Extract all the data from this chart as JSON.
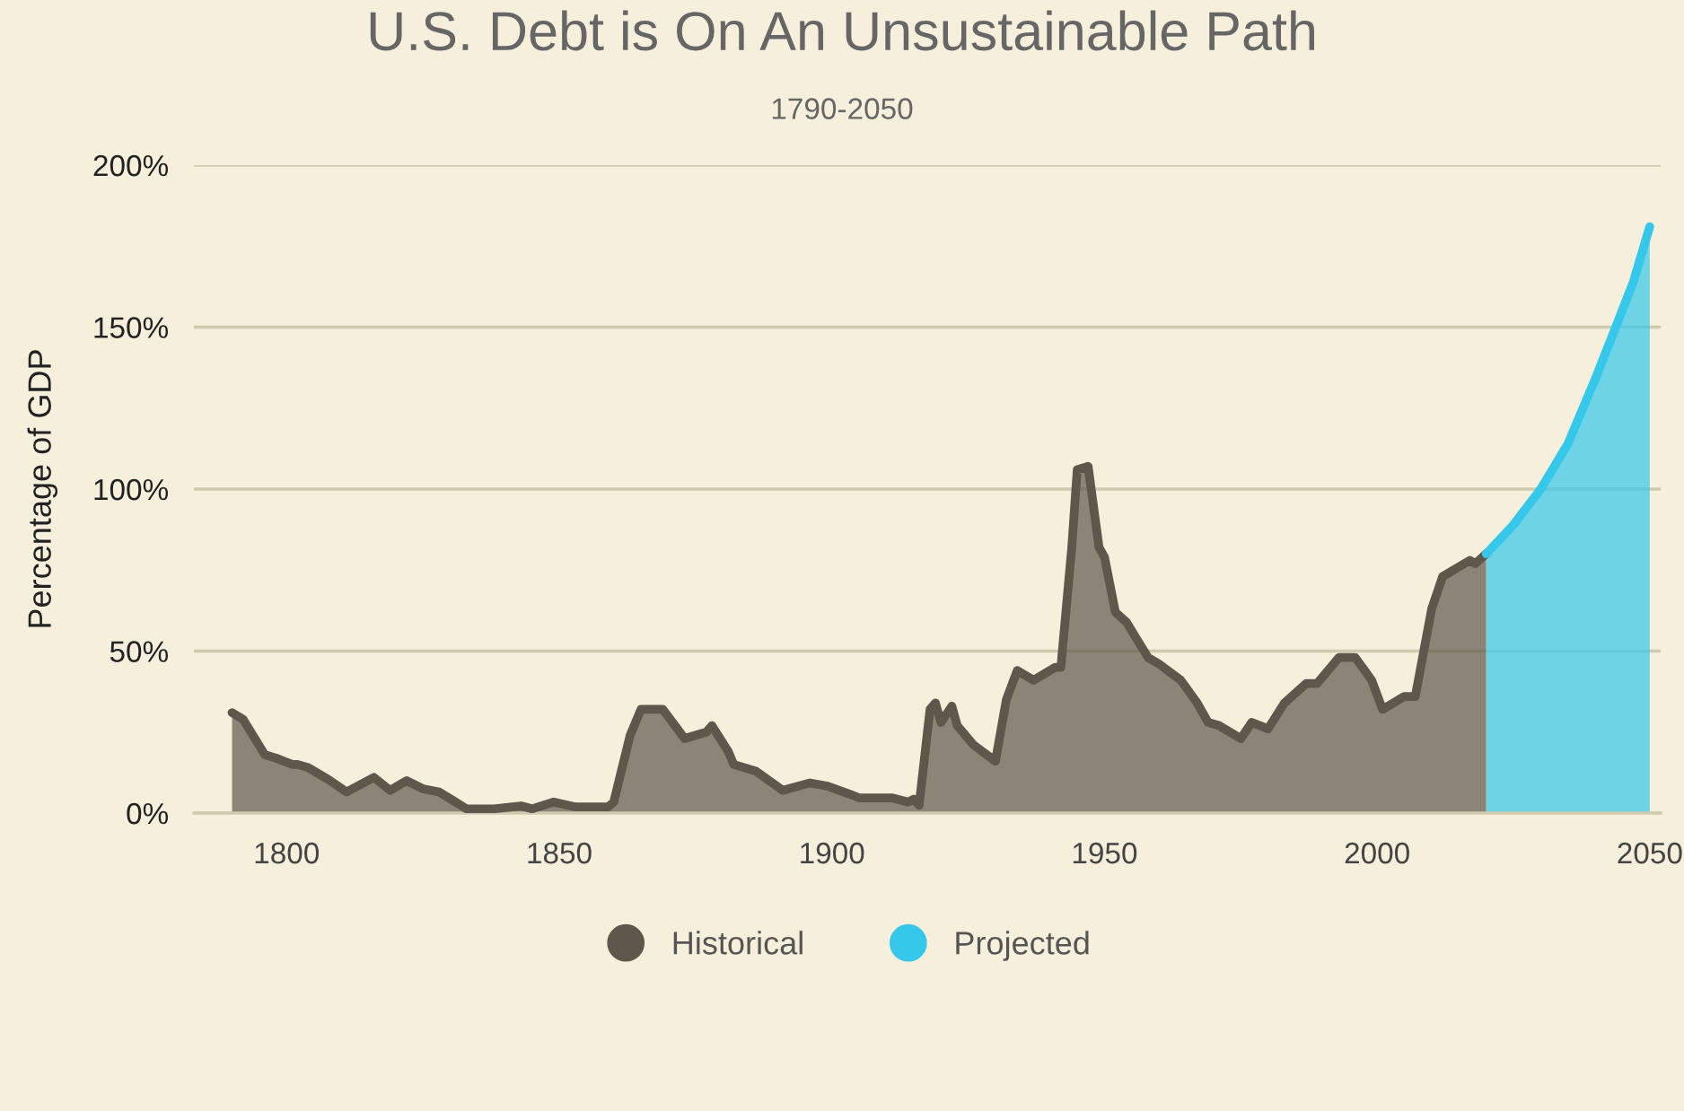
{
  "chart_data": {
    "type": "area",
    "title": "U.S. Debt is On An Unsustainable Path",
    "subtitle": "1790-2050",
    "ylabel": "Percentage of GDP",
    "xlim": [
      1783,
      2052
    ],
    "xticks": [
      1800,
      1850,
      1900,
      1950,
      2000,
      2050
    ],
    "ylim": [
      0,
      200
    ],
    "yticks": [
      {
        "value": 0,
        "label": "0%"
      },
      {
        "value": 50,
        "label": "50%"
      },
      {
        "value": 100,
        "label": "100%"
      },
      {
        "value": 150,
        "label": "150%"
      },
      {
        "value": 200,
        "label": "200%"
      }
    ],
    "grid": "y",
    "legend": "bottom",
    "marker": "none",
    "line_style": "solid",
    "series": [
      {
        "name": "Historical",
        "color": "#5e574b",
        "x": [
          1790,
          1792,
          1796,
          1798,
          1801,
          1802,
          1804,
          1807,
          1808,
          1811,
          1816,
          1819,
          1822,
          1825,
          1828,
          1833,
          1838,
          1843,
          1845,
          1849,
          1853,
          1859,
          1860,
          1863,
          1865,
          1869,
          1873,
          1877,
          1878,
          1881,
          1882,
          1886,
          1891,
          1896,
          1899,
          1903,
          1905,
          1911,
          1914,
          1915,
          1916,
          1918,
          1919,
          1920,
          1922,
          1923,
          1926,
          1930,
          1932,
          1934,
          1937,
          1941,
          1942,
          1944,
          1945,
          1947,
          1949,
          1950,
          1952,
          1954,
          1958,
          1960,
          1964,
          1967,
          1969,
          1971,
          1975,
          1977,
          1980,
          1983,
          1987,
          1989,
          1993,
          1996,
          1999,
          2001,
          2005,
          2007,
          2010,
          2012,
          2015,
          2017,
          2018,
          2020
        ],
        "values": [
          31,
          29,
          18,
          17,
          15,
          15,
          14,
          11,
          10,
          6.5,
          11,
          7,
          10,
          7.5,
          6.5,
          1.3,
          1.3,
          2.2,
          1.3,
          3.4,
          1.9,
          1.9,
          3.4,
          24,
          32,
          32,
          23,
          25,
          27,
          19,
          15,
          13,
          7,
          9.3,
          8.4,
          6,
          4.7,
          4.7,
          3.4,
          4.3,
          2.4,
          32,
          34,
          28,
          33,
          27,
          21,
          16,
          35,
          44,
          41,
          45,
          45,
          82,
          106,
          107,
          82,
          79,
          62,
          59,
          48,
          46,
          41,
          34,
          28,
          27,
          23,
          28,
          26,
          34,
          40,
          40,
          48,
          48,
          41,
          32,
          36,
          36,
          63,
          73,
          76,
          78,
          77,
          80
        ]
      },
      {
        "name": "Projected",
        "color": "#36c8ea",
        "x": [
          2020,
          2025,
          2030,
          2035,
          2040,
          2044,
          2047,
          2050
        ],
        "values": [
          80,
          89,
          100,
          114,
          134,
          151,
          164,
          181
        ]
      }
    ]
  }
}
